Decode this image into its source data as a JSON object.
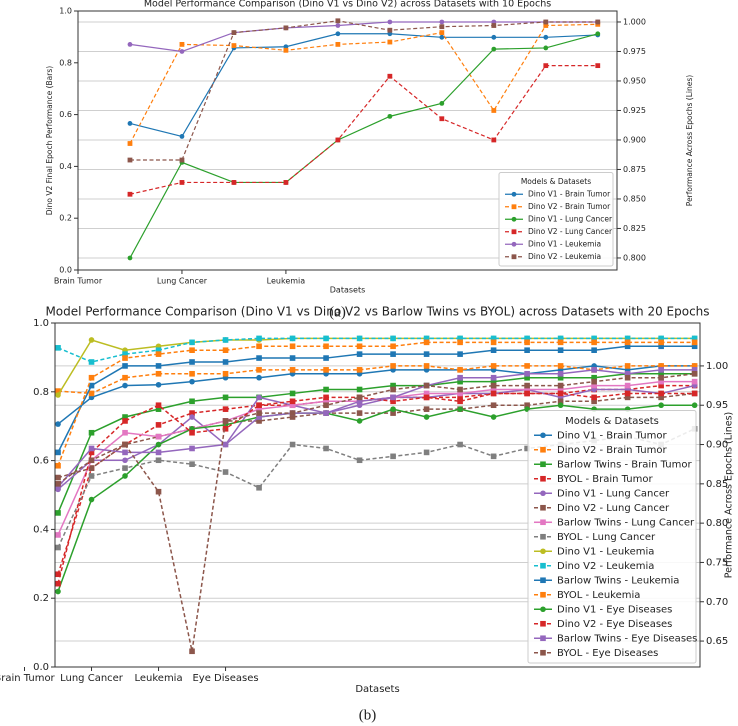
{
  "chart_data": [
    {
      "type": "line",
      "title": "Model Performance Comparison (Dino V1 vs Dino V2) across Datasets with 10 Epochs",
      "xlabel": "Datasets",
      "ylabel": "Dino V2 Final Epoch Performance (Bars)",
      "y2label": "Performance Across Epochs (Lines)",
      "caption": "(a)",
      "x": [
        1,
        2,
        3,
        4,
        5,
        6,
        7,
        8,
        9,
        10
      ],
      "xlim": [
        0,
        10.37
      ],
      "xticks": [
        {
          "value": 0,
          "label": "Brain Tumor"
        },
        {
          "value": 2,
          "label": "Lung Cancer"
        },
        {
          "value": 4,
          "label": "Leukemia"
        }
      ],
      "ylim": [
        0,
        1
      ],
      "yticks": [
        {
          "value": 0,
          "label": "0.0"
        },
        0.2,
        0.4,
        0.6,
        0.8,
        {
          "value": 1,
          "label": "1.0"
        }
      ],
      "y2lim": [
        0.7898,
        1.0093
      ],
      "y2ticks": [
        {
          "value": 0.8,
          "label": "0.800"
        },
        0.825,
        {
          "value": 0.85,
          "label": "0.850"
        },
        0.875,
        {
          "value": 0.9,
          "label": "0.900"
        },
        0.925,
        {
          "value": 0.95,
          "label": "0.950"
        },
        0.975,
        {
          "value": 1,
          "label": "1.000"
        }
      ],
      "grid": [
        "y2"
      ],
      "legend_title": "Models & Datasets",
      "legend_position": "lower right",
      "series": [
        {
          "name": "Dino V1 - Brain Tumor",
          "color": "#1f77b4",
          "linestyle": "solid",
          "marker": "circle",
          "axis": "y2",
          "values": [
            0.914,
            0.903,
            0.978,
            0.979,
            0.99,
            0.99,
            0.987,
            0.987,
            0.987,
            0.989
          ]
        },
        {
          "name": "Dino V2 - Brain Tumor",
          "color": "#ff7f0e",
          "linestyle": "dashed",
          "marker": "square",
          "axis": "y2",
          "values": [
            0.897,
            0.981,
            0.98,
            0.976,
            0.981,
            0.983,
            0.991,
            0.925,
            0.997,
            0.998
          ]
        },
        {
          "name": "Dino V1 - Lung Cancer",
          "color": "#2ca02c",
          "linestyle": "solid",
          "marker": "circle",
          "axis": "y2",
          "values": [
            0.8,
            0.881,
            0.864,
            0.864,
            0.9,
            0.92,
            0.931,
            0.977,
            0.978,
            0.99
          ]
        },
        {
          "name": "Dino V2 - Lung Cancer",
          "color": "#d62728",
          "linestyle": "dashed",
          "marker": "square",
          "axis": "y2",
          "values": [
            0.854,
            0.864,
            0.864,
            0.864,
            0.9,
            0.954,
            0.918,
            0.9,
            0.963,
            0.963
          ]
        },
        {
          "name": "Dino V1 - Leukemia",
          "color": "#9467bd",
          "linestyle": "solid",
          "marker": "circle",
          "axis": "y2",
          "values": [
            0.981,
            0.975,
            0.991,
            0.995,
            0.997,
            1.0,
            1.0,
            1.0,
            1.0,
            1.0
          ]
        },
        {
          "name": "Dino V2 - Leukemia",
          "color": "#8c564b",
          "linestyle": "dashed",
          "marker": "square",
          "axis": "y2",
          "values": [
            0.883,
            0.883,
            0.991,
            0.995,
            1.001,
            0.993,
            0.996,
            0.997,
            1.0,
            1.0
          ]
        }
      ]
    },
    {
      "type": "line",
      "title": "Model Performance Comparison (Dino V1 vs Dino V2 vs Barlow Twins vs BYOL) across Datasets with 20 Epochs",
      "xlabel": "Datasets",
      "y2label": "Performance Across Epochs (Lines)",
      "caption": "(b)",
      "x": [
        1,
        2,
        3,
        4,
        5,
        6,
        7,
        8,
        9,
        10,
        11,
        12,
        13,
        14,
        15,
        16,
        17,
        18,
        19,
        20
      ],
      "xlim": [
        0.91,
        20.16
      ],
      "xticks": [
        {
          "value": 0,
          "label": "Brain Tumor"
        },
        {
          "value": 2,
          "label": "Lung Cancer"
        },
        {
          "value": 4,
          "label": "Leukemia"
        },
        {
          "value": 6,
          "label": "Eye Diseases"
        }
      ],
      "ylim": [
        0,
        1
      ],
      "yticks": [
        {
          "value": 0,
          "label": "0.0"
        },
        0.2,
        0.4,
        0.6,
        0.8,
        {
          "value": 1,
          "label": "1.0"
        }
      ],
      "y2lim": [
        0.617,
        1.0546
      ],
      "y2ticks": [
        0.65,
        {
          "value": 0.7,
          "label": "0.70"
        },
        0.75,
        {
          "value": 0.8,
          "label": "0.80"
        },
        0.85,
        {
          "value": 0.9,
          "label": "0.90"
        },
        0.95,
        {
          "value": 1,
          "label": "1.00"
        }
      ],
      "grid": [
        "y",
        "y2"
      ],
      "legend_title": "Models & Datasets",
      "legend_position": "lower right",
      "series": [
        {
          "name": "Dino V1 - Brain Tumor",
          "color": "#1f77b4",
          "linestyle": "solid",
          "marker": "circle",
          "axis": "y2",
          "values": [
            0.926,
            0.96,
            0.975,
            0.976,
            0.98,
            0.985,
            0.985,
            0.99,
            0.99,
            0.99,
            0.995,
            0.995,
            0.995,
            0.995,
            0.99,
            0.995,
            1.0,
            0.995,
            1.0,
            1.0
          ]
        },
        {
          "name": "Dino V2 - Brain Tumor",
          "color": "#ff7f0e",
          "linestyle": "dashed",
          "marker": "square",
          "axis": "y2",
          "values": [
            0.968,
            0.965,
            0.985,
            0.99,
            0.99,
            0.99,
            0.995,
            0.995,
            0.995,
            0.995,
            1.0,
            1.0,
            0.995,
            1.0,
            1.0,
            1.0,
            0.995,
            1.0,
            1.0,
            1.0
          ]
        },
        {
          "name": "Barlow Twins - Brain Tumor",
          "color": "#2ca02c",
          "linestyle": "solid",
          "marker": "square",
          "axis": "y2",
          "values": [
            0.813,
            0.915,
            0.935,
            0.945,
            0.955,
            0.96,
            0.96,
            0.965,
            0.97,
            0.97,
            0.975,
            0.975,
            0.98,
            0.98,
            0.985,
            0.985,
            0.985,
            0.99,
            0.99,
            0.99
          ]
        },
        {
          "name": "BYOL - Brain Tumor",
          "color": "#d62728",
          "linestyle": "dashed",
          "marker": "square",
          "axis": "y2",
          "values": [
            0.735,
            0.87,
            0.9,
            0.925,
            0.94,
            0.945,
            0.95,
            0.95,
            0.955,
            0.955,
            0.96,
            0.96,
            0.96,
            0.965,
            0.965,
            0.965,
            0.97,
            0.97,
            0.975,
            0.975
          ]
        },
        {
          "name": "Dino V1 - Lung Cancer",
          "color": "#9467bd",
          "linestyle": "solid",
          "marker": "circle",
          "axis": "y2",
          "values": [
            0.843,
            0.88,
            0.88,
            0.9,
            0.935,
            0.9,
            0.96,
            0.95,
            0.94,
            0.95,
            0.96,
            0.96,
            0.965,
            0.965,
            0.97,
            0.96,
            0.97,
            0.97,
            0.965,
            0.975
          ]
        },
        {
          "name": "Dino V2 - Lung Cancer",
          "color": "#8c564b",
          "linestyle": "dashed",
          "marker": "square",
          "axis": "y2",
          "values": [
            0.858,
            0.87,
            0.9,
            0.91,
            0.92,
            0.93,
            0.93,
            0.935,
            0.94,
            0.94,
            0.94,
            0.945,
            0.945,
            0.95,
            0.95,
            0.955,
            0.955,
            0.96,
            0.96,
            0.965
          ]
        },
        {
          "name": "Barlow Twins - Lung Cancer",
          "color": "#e377c2",
          "linestyle": "solid",
          "marker": "square",
          "axis": "y2",
          "values": [
            0.785,
            0.88,
            0.915,
            0.91,
            0.92,
            0.93,
            0.945,
            0.95,
            0.955,
            0.955,
            0.96,
            0.965,
            0.965,
            0.97,
            0.97,
            0.97,
            0.975,
            0.975,
            0.98,
            0.98
          ]
        },
        {
          "name": "BYOL - Lung Cancer",
          "color": "#7f7f7f",
          "linestyle": "dashed",
          "marker": "square",
          "axis": "y2",
          "values": [
            0.769,
            0.86,
            0.87,
            0.88,
            0.875,
            0.865,
            0.845,
            0.9,
            0.895,
            0.88,
            0.885,
            0.89,
            0.9,
            0.885,
            0.895,
            0.9,
            0.905,
            0.91,
            0.9,
            0.92
          ]
        },
        {
          "name": "Dino V1 - Leukemia",
          "color": "#bcbd22",
          "linestyle": "solid",
          "marker": "circle",
          "axis": "y2",
          "values": [
            0.963,
            1.033,
            1.02,
            1.025,
            1.03,
            1.033,
            1.033,
            1.035,
            1.035,
            1.035,
            1.035,
            1.035,
            1.035,
            1.035,
            1.035,
            1.035,
            1.035,
            1.035,
            1.035,
            1.035
          ]
        },
        {
          "name": "Dino V2 - Leukemia",
          "color": "#17becf",
          "linestyle": "dashed",
          "marker": "square",
          "axis": "y2",
          "values": [
            1.023,
            1.005,
            1.015,
            1.02,
            1.03,
            1.033,
            1.035,
            1.035,
            1.035,
            1.035,
            1.035,
            1.035,
            1.035,
            1.035,
            1.035,
            1.035,
            1.035,
            1.035,
            1.035,
            1.035
          ]
        },
        {
          "name": "Barlow Twins - Leukemia",
          "color": "#1f77b4",
          "linestyle": "solid",
          "marker": "square",
          "axis": "y2",
          "values": [
            0.89,
            0.975,
            1.0,
            1.0,
            1.005,
            1.005,
            1.01,
            1.01,
            1.01,
            1.015,
            1.015,
            1.015,
            1.015,
            1.02,
            1.02,
            1.02,
            1.02,
            1.025,
            1.025,
            1.025
          ]
        },
        {
          "name": "BYOL - Leukemia",
          "color": "#ff7f0e",
          "linestyle": "dashed",
          "marker": "square",
          "axis": "y2",
          "values": [
            0.873,
            0.985,
            1.01,
            1.015,
            1.02,
            1.02,
            1.025,
            1.025,
            1.025,
            1.025,
            1.025,
            1.03,
            1.03,
            1.03,
            1.03,
            1.03,
            1.03,
            1.03,
            1.03,
            1.03
          ]
        },
        {
          "name": "Dino V1 - Eye Diseases",
          "color": "#2ca02c",
          "linestyle": "solid",
          "marker": "circle",
          "axis": "y2",
          "values": [
            0.713,
            0.83,
            0.86,
            0.9,
            0.92,
            0.925,
            0.935,
            0.94,
            0.94,
            0.93,
            0.945,
            0.935,
            0.945,
            0.935,
            0.945,
            0.95,
            0.945,
            0.945,
            0.95,
            0.95
          ]
        },
        {
          "name": "Dino V2 - Eye Diseases",
          "color": "#d62728",
          "linestyle": "dashed",
          "marker": "square",
          "axis": "y2",
          "values": [
            0.723,
            0.89,
            0.93,
            0.95,
            0.915,
            0.92,
            0.95,
            0.955,
            0.96,
            0.96,
            0.955,
            0.96,
            0.955,
            0.965,
            0.965,
            0.965,
            0.96,
            0.965,
            0.965,
            0.965
          ]
        },
        {
          "name": "Barlow Twins - Eye Diseases",
          "color": "#9467bd",
          "linestyle": "solid",
          "marker": "square",
          "axis": "y2",
          "values": [
            0.846,
            0.895,
            0.89,
            0.89,
            0.895,
            0.9,
            0.935,
            0.94,
            0.94,
            0.955,
            0.96,
            0.975,
            0.985,
            0.985,
            0.99,
            0.99,
            0.995,
            0.99,
            0.995,
            0.995
          ]
        },
        {
          "name": "BYOL - Eye Diseases",
          "color": "#8c564b",
          "linestyle": "dashed",
          "marker": "square",
          "axis": "y2",
          "values": [
            0.85,
            0.88,
            0.9,
            0.84,
            0.637,
            0.93,
            0.94,
            0.94,
            0.95,
            0.96,
            0.97,
            0.975,
            0.97,
            0.975,
            0.975,
            0.975,
            0.98,
            0.985,
            0.985,
            0.99
          ]
        }
      ]
    }
  ]
}
